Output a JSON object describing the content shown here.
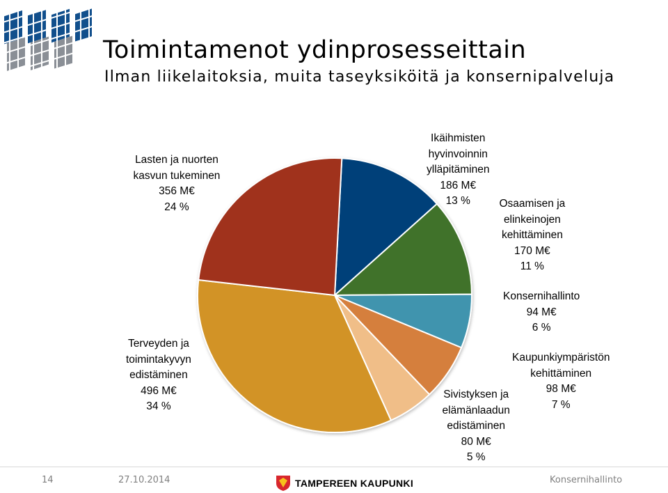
{
  "header": {
    "title": "Toimintamenot ydinprosesseittain",
    "subtitle": "Ilman liikelaitoksia, muita taseyksiköitä ja konsernipalveluja"
  },
  "chart_data": {
    "type": "pie",
    "title": "Toimintamenot ydinprosesseittain",
    "subtitle": "Ilman liikelaitoksia, muita taseyksiköitä ja konsernipalveluja",
    "unit": "M€",
    "slices": [
      {
        "lines": [
          "Ikäihmisten",
          "hyvinvoinnin",
          "ylläpitäminen"
        ],
        "value": 186,
        "value_label": "186 M€",
        "percent_label": "13 %",
        "color": "#004179"
      },
      {
        "lines": [
          "Osaamisen ja",
          "elinkeinojen",
          "kehittäminen"
        ],
        "value": 170,
        "value_label": "170 M€",
        "percent_label": "11 %",
        "color": "#3f722b"
      },
      {
        "lines": [
          "Konsernihallinto"
        ],
        "value": 94,
        "value_label": "94 M€",
        "percent_label": "6 %",
        "color": "#3f94ae"
      },
      {
        "lines": [
          "Kaupunkiympäristön",
          "kehittäminen"
        ],
        "value": 98,
        "value_label": "98 M€",
        "percent_label": "7 %",
        "color": "#d57f3e"
      },
      {
        "lines": [
          "Sivistyksen ja",
          "elämänlaadun",
          "edistäminen"
        ],
        "value": 80,
        "value_label": "80 M€",
        "percent_label": "5 %",
        "color": "#f0be88"
      },
      {
        "lines": [
          "Terveyden ja",
          "toimintakyvyn",
          "edistäminen"
        ],
        "value": 496,
        "value_label": "496 M€",
        "percent_label": "34 %",
        "color": "#d29325"
      },
      {
        "lines": [
          "Lasten ja nuorten",
          "kasvun tukeminen"
        ],
        "value": 356,
        "value_label": "356 M€",
        "percent_label": "24 %",
        "color": "#a0321e"
      }
    ]
  },
  "footer": {
    "page_number": "14",
    "date": "27.10.2014",
    "brand": "TAMPEREEN KAUPUNKI",
    "unit": "Konsernihallinto"
  },
  "colors": {
    "logo_blue": "#114f8c",
    "logo_grey": "#8a8f96",
    "brand_red": "#d8272d",
    "brand_yellow": "#f6c21c"
  }
}
